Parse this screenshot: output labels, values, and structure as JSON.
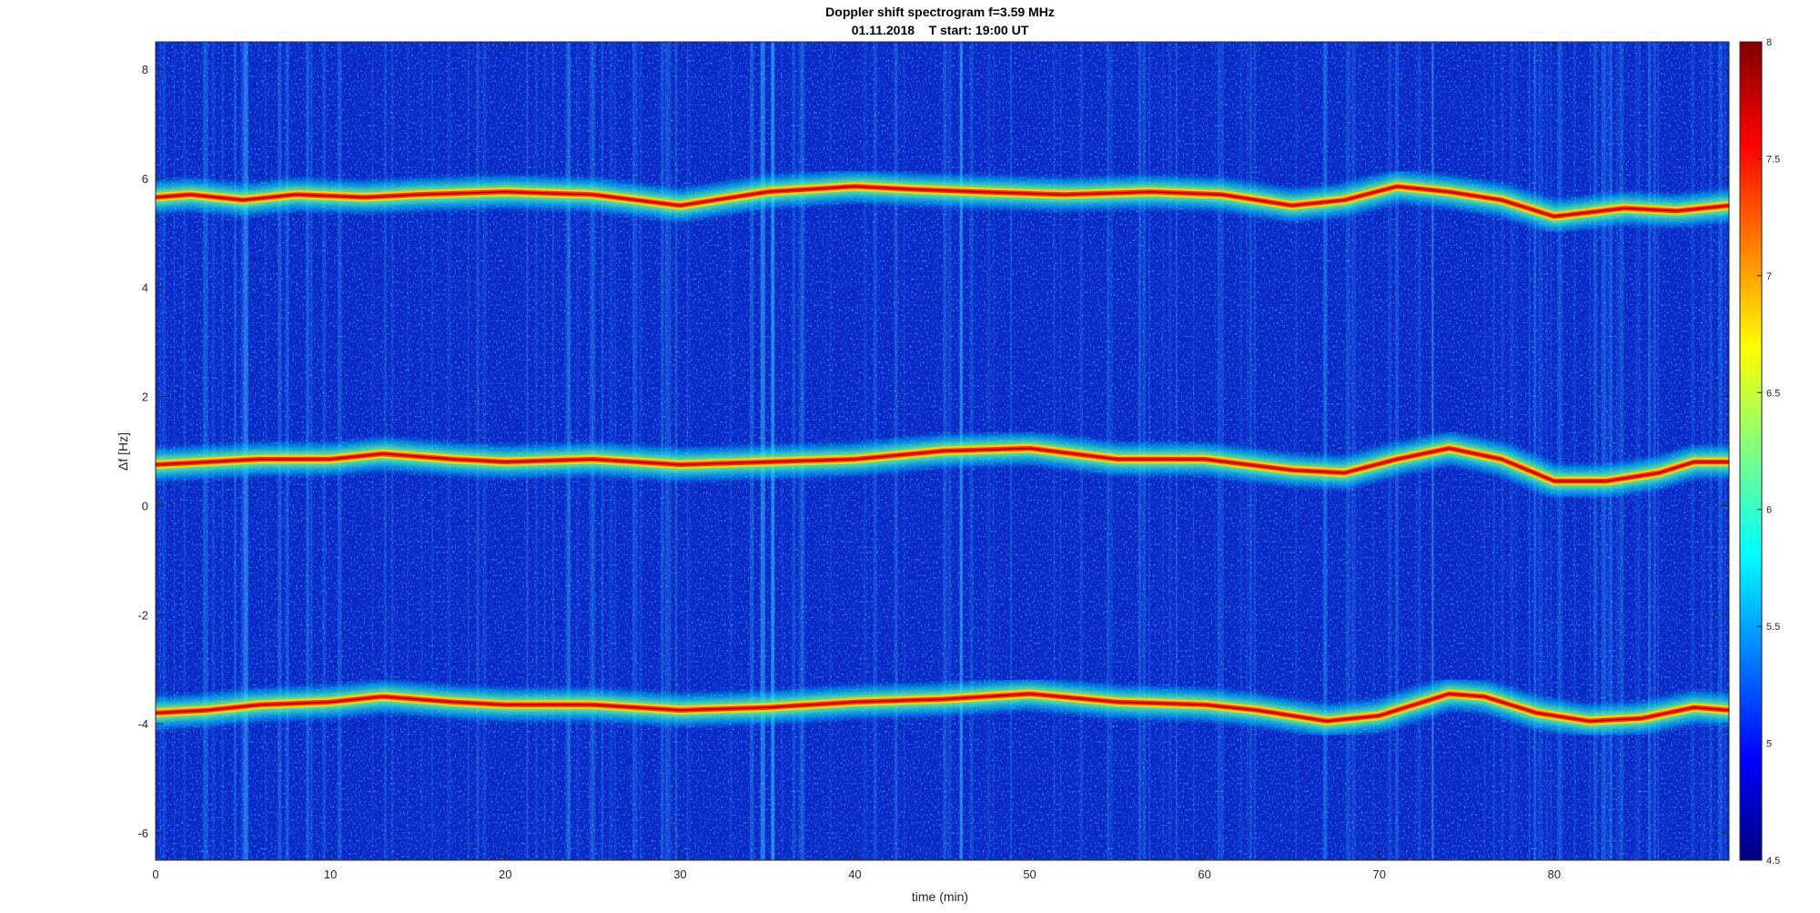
{
  "chart_data": {
    "type": "heatmap",
    "title": "Doppler shift spectrogram f=3.59 MHz",
    "subtitle": "01.11.2018    T start: 19:00 UT",
    "xlabel": "time (min)",
    "ylabel": "Δf [Hz]",
    "xlim": [
      0,
      90
    ],
    "ylim": [
      -6.5,
      8.5
    ],
    "xticks": [
      0,
      10,
      20,
      30,
      40,
      50,
      60,
      70,
      80
    ],
    "yticks": [
      -6,
      -4,
      -2,
      0,
      2,
      4,
      6,
      8
    ],
    "colorbar": {
      "colormap": "jet",
      "clim": [
        4.5,
        8
      ],
      "ticks": [
        4.5,
        5,
        5.5,
        6,
        6.5,
        7,
        7.5,
        8
      ]
    },
    "series": [
      {
        "x": [
          0,
          2,
          5,
          8,
          12,
          15,
          20,
          25,
          30,
          35,
          40,
          43,
          47,
          52,
          57,
          61,
          65,
          68,
          71,
          74,
          77,
          80,
          84,
          87,
          90
        ],
        "y": [
          5.65,
          5.7,
          5.6,
          5.7,
          5.65,
          5.7,
          5.75,
          5.7,
          5.5,
          5.75,
          5.85,
          5.8,
          5.75,
          5.7,
          5.75,
          5.7,
          5.5,
          5.6,
          5.85,
          5.75,
          5.6,
          5.3,
          5.45,
          5.4,
          5.5
        ]
      },
      {
        "x": [
          0,
          3,
          6,
          10,
          13,
          17,
          20,
          25,
          30,
          35,
          40,
          45,
          50,
          55,
          60,
          65,
          68,
          71,
          74,
          77,
          80,
          83,
          86,
          88,
          90
        ],
        "y": [
          0.75,
          0.8,
          0.85,
          0.85,
          0.95,
          0.85,
          0.8,
          0.85,
          0.75,
          0.8,
          0.85,
          1.0,
          1.05,
          0.85,
          0.85,
          0.65,
          0.6,
          0.85,
          1.05,
          0.85,
          0.45,
          0.45,
          0.6,
          0.8,
          0.8
        ]
      },
      {
        "x": [
          0,
          3,
          6,
          10,
          13,
          17,
          20,
          25,
          30,
          35,
          40,
          45,
          50,
          55,
          60,
          63,
          67,
          70,
          74,
          76,
          79,
          82,
          85,
          88,
          90
        ],
        "y": [
          -3.8,
          -3.75,
          -3.65,
          -3.6,
          -3.5,
          -3.6,
          -3.65,
          -3.65,
          -3.75,
          -3.7,
          -3.6,
          -3.55,
          -3.45,
          -3.6,
          -3.65,
          -3.75,
          -3.95,
          -3.85,
          -3.45,
          -3.5,
          -3.8,
          -3.95,
          -3.9,
          -3.7,
          -3.75
        ]
      }
    ]
  }
}
